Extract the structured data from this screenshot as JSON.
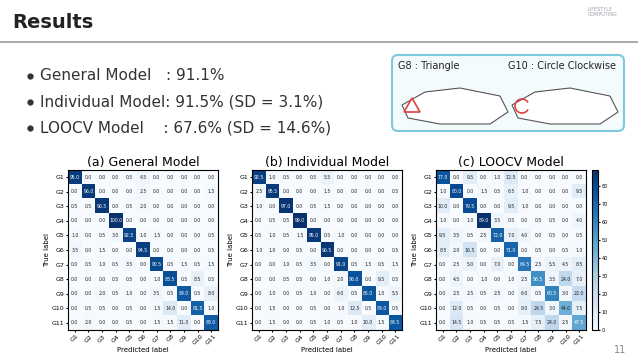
{
  "slide": {
    "title": "Results",
    "logo": [
      "LIFESTYLE",
      "COMPUTING"
    ],
    "bullets": [
      "General Model   : 91.1%",
      "Individual Model: 91.5% (SD = 3.1%)",
      "LOOCV Model    : 67.6% (SD = 14.6%)"
    ],
    "image_labels": [
      "G8 : Triangle",
      "G10 : Circle Clockwise"
    ],
    "page_number": "11"
  },
  "chart_data": [
    {
      "type": "heatmap",
      "title": "(a) General Model",
      "x_label": "Predicted label",
      "y_label": "True label",
      "x_categories": [
        "G1",
        "G2",
        "G3",
        "G4",
        "G5",
        "G6",
        "G7",
        "G8",
        "G9",
        "G10",
        "G11"
      ],
      "y_categories": [
        "G1",
        "G2",
        "G3",
        "G4",
        "G5",
        "G6",
        "G7",
        "G8",
        "G9",
        "G10",
        "G11"
      ],
      "data_labels": true,
      "cells": [
        [
          95.0,
          0.0,
          0.0,
          0.0,
          0.5,
          4.5,
          0.0,
          0.0,
          0.0,
          0.0,
          0.0
        ],
        [
          0.0,
          96.0,
          0.0,
          0.0,
          0.0,
          2.5,
          0.0,
          0.0,
          0.0,
          0.0,
          1.5
        ],
        [
          0.5,
          0.5,
          96.5,
          0.0,
          0.5,
          2.0,
          0.0,
          0.0,
          0.0,
          0.0,
          0.0
        ],
        [
          0.0,
          0.0,
          0.0,
          100.0,
          0.0,
          0.0,
          0.0,
          0.0,
          0.0,
          0.0,
          0.0
        ],
        [
          1.0,
          0.0,
          0.5,
          3.0,
          92.5,
          1.0,
          1.5,
          0.0,
          0.0,
          0.0,
          0.5
        ],
        [
          3.5,
          0.0,
          1.5,
          0.0,
          0.0,
          94.5,
          0.0,
          0.0,
          0.0,
          0.0,
          0.5
        ],
        [
          0.0,
          0.5,
          1.0,
          0.5,
          3.5,
          0.0,
          90.5,
          0.5,
          1.5,
          0.5,
          1.5
        ],
        [
          0.0,
          0.0,
          0.0,
          0.5,
          0.5,
          0.0,
          1.0,
          88.5,
          0.5,
          8.5,
          0.5
        ],
        [
          0.0,
          0.0,
          2.0,
          0.5,
          1.0,
          0.0,
          3.5,
          0.5,
          84.0,
          0.5,
          8.0
        ],
        [
          0.0,
          0.5,
          0.5,
          0.0,
          0.5,
          0.0,
          1.5,
          14.0,
          0.0,
          81.5,
          1.0
        ],
        [
          0.0,
          2.0,
          0.0,
          0.0,
          0.5,
          0.0,
          1.5,
          1.5,
          11.0,
          0.0,
          83.0
        ]
      ]
    },
    {
      "type": "heatmap",
      "title": "(b) Individual Model",
      "x_label": "Predicted label",
      "y_label": "True label",
      "x_categories": [
        "G1",
        "G2",
        "G3",
        "G4",
        "G5",
        "G6",
        "G7",
        "G8",
        "G9",
        "G10",
        "G11"
      ],
      "y_categories": [
        "G1",
        "G2",
        "G3",
        "G4",
        "G5",
        "G6",
        "G7",
        "G8",
        "G9",
        "G10",
        "G11"
      ],
      "data_labels": true,
      "cells": [
        [
          92.5,
          1.0,
          0.5,
          0.0,
          0.5,
          5.5,
          0.0,
          0.0,
          0.0,
          0.0,
          0.0
        ],
        [
          2.5,
          95.5,
          0.0,
          0.0,
          0.0,
          1.5,
          0.0,
          0.0,
          0.0,
          0.0,
          0.5
        ],
        [
          1.0,
          0.0,
          97.0,
          0.0,
          0.5,
          1.5,
          0.0,
          0.0,
          0.0,
          0.0,
          0.0
        ],
        [
          0.0,
          0.5,
          0.5,
          99.0,
          0.0,
          0.0,
          0.0,
          0.0,
          0.0,
          0.0,
          0.0
        ],
        [
          0.5,
          1.0,
          0.5,
          1.5,
          95.0,
          0.5,
          1.0,
          0.0,
          0.0,
          0.0,
          0.0
        ],
        [
          1.0,
          1.0,
          0.0,
          0.5,
          0.0,
          96.5,
          0.0,
          0.0,
          0.0,
          0.0,
          0.5
        ],
        [
          0.0,
          0.0,
          1.0,
          0.5,
          3.5,
          0.0,
          91.0,
          0.5,
          1.5,
          0.5,
          1.5
        ],
        [
          0.0,
          0.0,
          0.5,
          0.5,
          0.0,
          1.0,
          2.0,
          86.0,
          0.0,
          9.5,
          0.5
        ],
        [
          0.0,
          1.0,
          0.0,
          0.5,
          1.0,
          0.0,
          6.0,
          0.5,
          85.0,
          1.0,
          5.5
        ],
        [
          0.0,
          1.5,
          0.0,
          0.0,
          0.5,
          0.0,
          1.0,
          12.5,
          0.5,
          84.0,
          0.5
        ],
        [
          0.0,
          1.5,
          0.0,
          0.0,
          0.5,
          1.0,
          0.5,
          1.0,
          10.0,
          1.5,
          84.5
        ]
      ]
    },
    {
      "type": "heatmap",
      "title": "(c) LOOCV Model",
      "x_label": "Predicted label",
      "y_label": "True label",
      "x_categories": [
        "G1",
        "G2",
        "G3",
        "G4",
        "G5",
        "G6",
        "G7",
        "G8",
        "G9",
        "G10",
        "G11"
      ],
      "y_categories": [
        "G1",
        "G2",
        "G3",
        "G4",
        "G5",
        "G6",
        "G7",
        "G8",
        "G9",
        "G10",
        "G11"
      ],
      "data_labels": true,
      "cells": [
        [
          77.0,
          0.0,
          9.5,
          0.0,
          1.0,
          12.5,
          0.0,
          0.0,
          0.0,
          0.0,
          0.0
        ],
        [
          1.0,
          80.0,
          0.0,
          1.5,
          0.5,
          6.5,
          1.0,
          0.0,
          0.0,
          0.0,
          9.5
        ],
        [
          10.0,
          0.0,
          79.5,
          0.0,
          0.0,
          9.5,
          1.0,
          0.0,
          0.0,
          0.0,
          0.0
        ],
        [
          1.0,
          0.0,
          1.0,
          89.0,
          3.5,
          0.5,
          0.0,
          0.5,
          0.5,
          0.0,
          4.0
        ],
        [
          9.5,
          3.5,
          0.5,
          2.5,
          72.0,
          7.0,
          4.0,
          0.0,
          0.5,
          0.0,
          0.5
        ],
        [
          8.5,
          2.0,
          16.5,
          0.0,
          0.0,
          71.0,
          0.0,
          0.5,
          0.0,
          0.5,
          1.0
        ],
        [
          0.0,
          2.5,
          5.0,
          0.0,
          7.0,
          0.0,
          64.5,
          2.5,
          5.5,
          4.5,
          8.5
        ],
        [
          0.0,
          4.5,
          0.0,
          1.0,
          0.0,
          1.0,
          2.5,
          56.5,
          3.5,
          24.0,
          7.0
        ],
        [
          0.0,
          2.5,
          2.5,
          0.5,
          2.5,
          0.0,
          6.0,
          0.5,
          60.5,
          3.0,
          22.0
        ],
        [
          0.0,
          12.0,
          0.5,
          0.0,
          0.5,
          0.0,
          8.0,
          24.5,
          3.0,
          44.0,
          7.5
        ],
        [
          0.0,
          14.5,
          1.0,
          0.5,
          0.5,
          0.5,
          1.5,
          7.5,
          24.0,
          2.5,
          47.5
        ]
      ],
      "colorbar": {
        "range": [
          0,
          89
        ],
        "ticks": [
          0,
          10,
          20,
          30,
          40,
          50,
          60,
          70,
          80
        ]
      }
    }
  ]
}
